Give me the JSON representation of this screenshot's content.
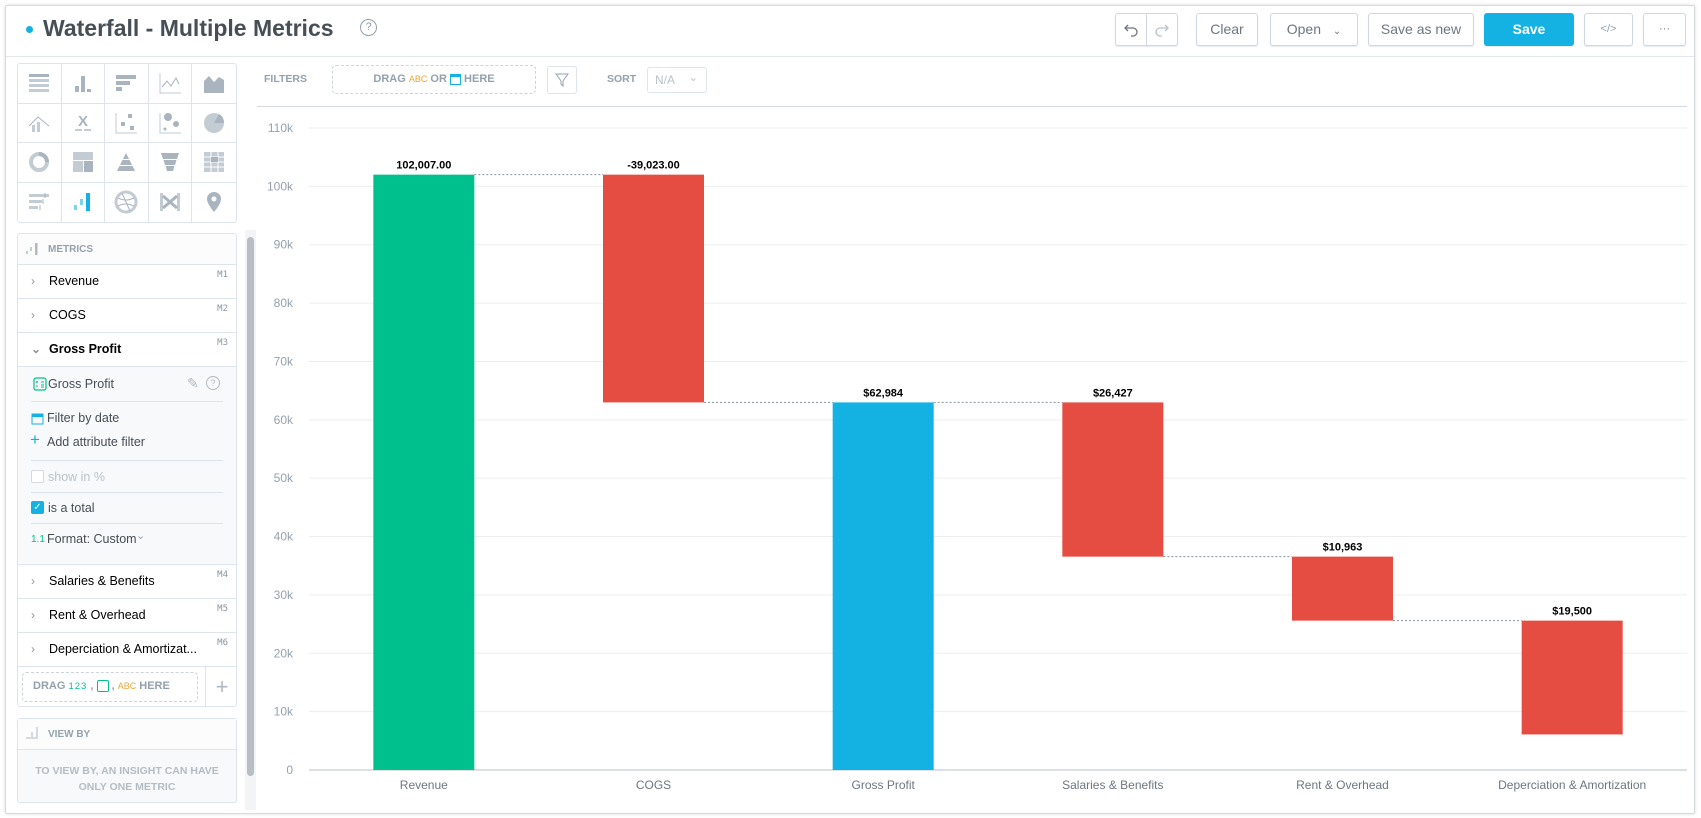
{
  "header": {
    "title": "Waterfall - Multiple Metrics",
    "help_icon": "question-circle-icon",
    "status_dot_color": "#14b2e2"
  },
  "toolbar": {
    "undo_icon": "undo-icon",
    "redo_icon": "redo-icon",
    "clear": "Clear",
    "open": "Open",
    "save_as_new": "Save as new",
    "save": "Save",
    "embed_icon": "code-icon",
    "more": "···"
  },
  "chart_types": [
    "table",
    "column",
    "bar",
    "line",
    "area",
    "combo",
    "headline",
    "scatter",
    "bubble",
    "pie",
    "donut",
    "treemap",
    "pyramid",
    "funnel",
    "heatmap",
    "bullet",
    "waterfall",
    "dependency-wheel",
    "sankey",
    "geo-pushpin"
  ],
  "active_chart_type": "waterfall",
  "metrics": {
    "title": "METRICS",
    "items": [
      {
        "label": "Revenue",
        "id": "M1"
      },
      {
        "label": "COGS",
        "id": "M2"
      },
      {
        "label": "Gross Profit",
        "id": "M3"
      },
      {
        "label": "Salaries & Benefits",
        "id": "M4"
      },
      {
        "label": "Rent & Overhead",
        "id": "M5"
      },
      {
        "label": "Deperciation & Amortizat...",
        "id": "M6"
      }
    ],
    "expanded": {
      "name": "Gross Profit",
      "filter_by_date": "Filter by date",
      "add_attribute_filter": "Add attribute filter",
      "show_in_percent": "show in %",
      "show_in_percent_checked": false,
      "is_total": "is a total",
      "is_total_checked": true,
      "format_prefix": "1.1",
      "format": "Format: Custom"
    },
    "drag": {
      "drag": "DRAG",
      "num": "123",
      "comma": ",",
      "abc": "ABC",
      "here": "HERE"
    }
  },
  "view_by": {
    "title": "VIEW BY",
    "message": "TO VIEW BY, AN INSIGHT CAN HAVE ONLY ONE METRIC"
  },
  "filters": {
    "label": "FILTERS",
    "drag": "DRAG",
    "abc": "ABC",
    "or": "OR",
    "here": "HERE"
  },
  "sort": {
    "label": "SORT",
    "value": "N/A"
  },
  "chart_data": {
    "type": "bar",
    "variant": "waterfall",
    "categories": [
      "Revenue",
      "COGS",
      "Gross Profit",
      "Salaries & Benefits",
      "Rent & Overhead",
      "Deperciation & Amortization"
    ],
    "values": [
      102007,
      -39023,
      62984,
      -26427,
      -10963,
      -19500
    ],
    "is_total": [
      false,
      false,
      true,
      false,
      false,
      false
    ],
    "data_labels": [
      "102,007.00",
      "-39,023.00",
      "$62,984",
      "$26,427",
      "$10,963",
      "$19,500"
    ],
    "colors": {
      "start": "#00c18d",
      "decrease": "#e54d42",
      "total": "#14b2e2"
    },
    "ylim": [
      0,
      110000
    ],
    "yticks": [
      "0",
      "10k",
      "20k",
      "30k",
      "40k",
      "50k",
      "60k",
      "70k",
      "80k",
      "90k",
      "100k",
      "110k"
    ],
    "grid": true,
    "xlabel": "",
    "ylabel": ""
  }
}
